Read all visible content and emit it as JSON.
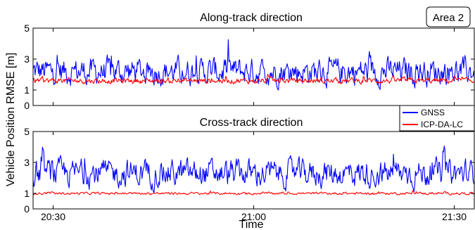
{
  "chart_data": {
    "type": "line",
    "ylabel": "Vehicle Position RMSE [m]",
    "xlabel": "Time",
    "annotation": "Area 2",
    "x_range": [
      "20:27",
      "21:33"
    ],
    "x_ticks": [
      {
        "label": "20:30",
        "minutes": 0
      },
      {
        "label": "21:00",
        "minutes": 30
      },
      {
        "label": "21:30",
        "minutes": 60
      }
    ],
    "legend": {
      "placement": "top-right of lower panel",
      "entries": [
        "GNSS",
        "ICP-DA-LC"
      ]
    },
    "colors": {
      "GNSS": "#0000ff",
      "ICP-DA-LC": "#ff0000"
    },
    "panels": [
      {
        "title": "Along-track direction",
        "ylim": [
          0,
          5
        ],
        "yticks": [
          "0",
          "1",
          "3",
          "5"
        ],
        "series": [
          {
            "name": "GNSS",
            "mean": 2.2,
            "spread": 0.55,
            "min": 1.0,
            "max": 4.4,
            "sample_interval_min": 0.1
          },
          {
            "name": "ICP-DA-LC",
            "mean": 1.6,
            "spread": 0.12,
            "min": 1.1,
            "max": 2.5,
            "sample_interval_min": 0.1
          }
        ]
      },
      {
        "title": "Cross-track direction",
        "ylim": [
          0,
          5
        ],
        "yticks": [
          "0",
          "1",
          "3",
          "5"
        ],
        "series": [
          {
            "name": "GNSS",
            "mean": 2.3,
            "spread": 0.55,
            "min": 1.0,
            "max": 4.4,
            "sample_interval_min": 0.1
          },
          {
            "name": "ICP-DA-LC",
            "mean": 1.0,
            "spread": 0.05,
            "min": 0.8,
            "max": 1.6,
            "sample_interval_min": 0.1
          }
        ]
      }
    ]
  }
}
